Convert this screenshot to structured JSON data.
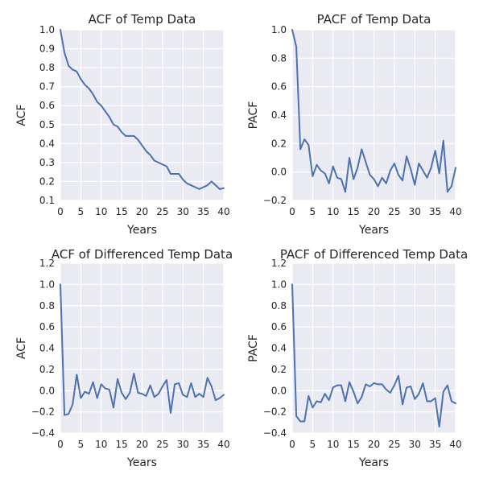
{
  "colors": {
    "line": "#4c72b0",
    "background": "#eaeaf2",
    "grid": "#ffffff"
  },
  "chart_data": [
    {
      "type": "line",
      "title": "ACF of Temp Data",
      "xlabel": "Years",
      "ylabel": "ACF",
      "xlim": [
        0,
        40
      ],
      "ylim": [
        0.1,
        1.0
      ],
      "xticks": [
        "0",
        "5",
        "10",
        "15",
        "20",
        "25",
        "30",
        "35",
        "40"
      ],
      "yticks": [
        "0.1",
        "0.2",
        "0.3",
        "0.4",
        "0.5",
        "0.6",
        "0.7",
        "0.8",
        "0.9",
        "1.0"
      ],
      "grid": true,
      "x": [
        0,
        1,
        2,
        3,
        4,
        5,
        6,
        7,
        8,
        9,
        10,
        11,
        12,
        13,
        14,
        15,
        16,
        17,
        18,
        19,
        20,
        21,
        22,
        23,
        24,
        25,
        26,
        27,
        28,
        29,
        30,
        31,
        32,
        33,
        34,
        35,
        36,
        37,
        38,
        39,
        40
      ],
      "values": [
        1.0,
        0.88,
        0.81,
        0.79,
        0.78,
        0.74,
        0.71,
        0.69,
        0.66,
        0.62,
        0.6,
        0.57,
        0.54,
        0.5,
        0.49,
        0.46,
        0.44,
        0.44,
        0.44,
        0.42,
        0.39,
        0.36,
        0.34,
        0.31,
        0.3,
        0.29,
        0.28,
        0.24,
        0.24,
        0.24,
        0.21,
        0.19,
        0.18,
        0.17,
        0.16,
        0.17,
        0.18,
        0.2,
        0.18,
        0.16,
        0.165
      ]
    },
    {
      "type": "line",
      "title": "PACF of Temp Data",
      "xlabel": "Years",
      "ylabel": "PACF",
      "xlim": [
        0,
        40
      ],
      "ylim": [
        -0.2,
        1.0
      ],
      "xticks": [
        "0",
        "5",
        "10",
        "15",
        "20",
        "25",
        "30",
        "35",
        "40"
      ],
      "yticks": [
        "−0.2",
        "0.0",
        "0.2",
        "0.4",
        "0.6",
        "0.8",
        "1.0"
      ],
      "grid": true,
      "x": [
        0,
        1,
        2,
        3,
        4,
        5,
        6,
        7,
        8,
        9,
        10,
        11,
        12,
        13,
        14,
        15,
        16,
        17,
        18,
        19,
        20,
        21,
        22,
        23,
        24,
        25,
        26,
        27,
        28,
        29,
        30,
        31,
        32,
        33,
        34,
        35,
        36,
        37,
        38,
        39,
        40
      ],
      "values": [
        1.0,
        0.88,
        0.16,
        0.23,
        0.19,
        -0.03,
        0.05,
        0.01,
        -0.01,
        -0.08,
        0.04,
        -0.04,
        -0.05,
        -0.14,
        0.1,
        -0.05,
        0.03,
        0.16,
        0.07,
        -0.02,
        -0.05,
        -0.1,
        -0.04,
        -0.08,
        0.01,
        0.06,
        -0.02,
        -0.06,
        0.11,
        0.02,
        -0.09,
        0.06,
        0.01,
        -0.04,
        0.03,
        0.15,
        -0.01,
        0.22,
        -0.14,
        -0.1,
        0.03
      ]
    },
    {
      "type": "line",
      "title": "ACF of Differenced Temp Data",
      "xlabel": "Years",
      "ylabel": "ACF",
      "xlim": [
        0,
        40
      ],
      "ylim": [
        -0.4,
        1.2
      ],
      "xticks": [
        "0",
        "5",
        "10",
        "15",
        "20",
        "25",
        "30",
        "35",
        "40"
      ],
      "yticks": [
        "−0.4",
        "−0.2",
        "0.0",
        "0.2",
        "0.4",
        "0.6",
        "0.8",
        "1.0",
        "1.2"
      ],
      "grid": true,
      "x": [
        0,
        1,
        2,
        3,
        4,
        5,
        6,
        7,
        8,
        9,
        10,
        11,
        12,
        13,
        14,
        15,
        16,
        17,
        18,
        19,
        20,
        21,
        22,
        23,
        24,
        25,
        26,
        27,
        28,
        29,
        30,
        31,
        32,
        33,
        34,
        35,
        36,
        37,
        38,
        39,
        40
      ],
      "values": [
        1.0,
        -0.23,
        -0.22,
        -0.13,
        0.15,
        -0.07,
        -0.01,
        -0.03,
        0.08,
        -0.07,
        0.06,
        0.02,
        0.01,
        -0.16,
        0.11,
        -0.02,
        -0.08,
        -0.02,
        0.16,
        -0.02,
        -0.03,
        -0.05,
        0.05,
        -0.06,
        -0.03,
        0.04,
        0.1,
        -0.21,
        0.06,
        0.07,
        -0.04,
        -0.06,
        0.07,
        -0.06,
        -0.03,
        -0.06,
        0.12,
        0.04,
        -0.09,
        -0.07,
        -0.04
      ]
    },
    {
      "type": "line",
      "title": "PACF of Differenced Temp Data",
      "xlabel": "Years",
      "ylabel": "PACF",
      "xlim": [
        0,
        40
      ],
      "ylim": [
        -0.4,
        1.2
      ],
      "xticks": [
        "0",
        "5",
        "10",
        "15",
        "20",
        "25",
        "30",
        "35",
        "40"
      ],
      "yticks": [
        "−0.4",
        "−0.2",
        "0.0",
        "0.2",
        "0.4",
        "0.6",
        "0.8",
        "1.0",
        "1.2"
      ],
      "grid": true,
      "x": [
        0,
        1,
        2,
        3,
        4,
        5,
        6,
        7,
        8,
        9,
        10,
        11,
        12,
        13,
        14,
        15,
        16,
        17,
        18,
        19,
        20,
        21,
        22,
        23,
        24,
        25,
        26,
        27,
        28,
        29,
        30,
        31,
        32,
        33,
        34,
        35,
        36,
        37,
        38,
        39,
        40
      ],
      "values": [
        1.0,
        -0.24,
        -0.29,
        -0.29,
        -0.05,
        -0.16,
        -0.1,
        -0.11,
        -0.03,
        -0.09,
        0.03,
        0.05,
        0.05,
        -0.1,
        0.08,
        -0.01,
        -0.12,
        -0.06,
        0.06,
        0.04,
        0.07,
        0.06,
        0.06,
        0.01,
        -0.02,
        0.05,
        0.14,
        -0.13,
        0.03,
        0.04,
        -0.08,
        -0.03,
        0.07,
        -0.1,
        -0.1,
        -0.07,
        -0.34,
        -0.01,
        0.05,
        -0.1,
        -0.12
      ]
    }
  ]
}
